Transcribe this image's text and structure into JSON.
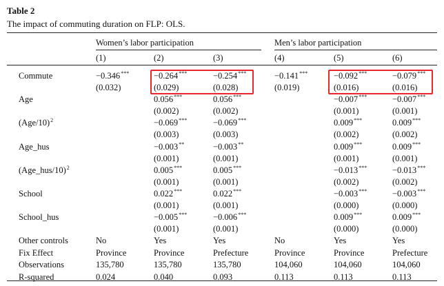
{
  "caption": {
    "label": "Table 2",
    "title": "The impact of commuting duration on FLP: OLS."
  },
  "groups": {
    "women": "Women’s labor participation",
    "men": "Men’s labor participation"
  },
  "col_nums": [
    "(1)",
    "(2)",
    "(3)",
    "(4)",
    "(5)",
    "(6)"
  ],
  "rows": [
    {
      "label": "Commute",
      "sup": "",
      "coef": [
        [
          "−0.346",
          "***"
        ],
        [
          "−0.264",
          "***"
        ],
        [
          "−0.254",
          "***"
        ],
        [
          "−0.141",
          "***"
        ],
        [
          "−0.092",
          "***"
        ],
        [
          "−0.079",
          "***"
        ]
      ],
      "se": [
        "(0.032)",
        "(0.029)",
        "(0.028)",
        "(0.019)",
        "(0.016)",
        "(0.016)"
      ]
    },
    {
      "label": "Age",
      "sup": "",
      "coef": [
        [
          "",
          ""
        ],
        [
          "0.056",
          "***"
        ],
        [
          "0.056",
          "***"
        ],
        [
          "",
          ""
        ],
        [
          "−0.007",
          "***"
        ],
        [
          "−0.007",
          "***"
        ]
      ],
      "se": [
        "",
        "(0.002)",
        "(0.002)",
        "",
        "(0.001)",
        "(0.001)"
      ]
    },
    {
      "label": "(Age/10)",
      "sup": "2",
      "coef": [
        [
          "",
          ""
        ],
        [
          "−0.069",
          "***"
        ],
        [
          "−0.069",
          "***"
        ],
        [
          "",
          ""
        ],
        [
          "0.009",
          "***"
        ],
        [
          "0.009",
          "***"
        ]
      ],
      "se": [
        "",
        "(0.003)",
        "(0.003)",
        "",
        "(0.002)",
        "(0.002)"
      ]
    },
    {
      "label": "Age_hus",
      "sup": "",
      "coef": [
        [
          "",
          ""
        ],
        [
          "−0.003",
          "**"
        ],
        [
          "−0.003",
          "**"
        ],
        [
          "",
          ""
        ],
        [
          "0.009",
          "***"
        ],
        [
          "0.009",
          "***"
        ]
      ],
      "se": [
        "",
        "(0.001)",
        "(0.001)",
        "",
        "(0.001)",
        "(0.001)"
      ]
    },
    {
      "label": "(Age_hus/10)",
      "sup": "2",
      "coef": [
        [
          "",
          ""
        ],
        [
          "0.005",
          "***"
        ],
        [
          "0.005",
          "***"
        ],
        [
          "",
          ""
        ],
        [
          "−0.013",
          "***"
        ],
        [
          "−0.013",
          "***"
        ]
      ],
      "se": [
        "",
        "(0.001)",
        "(0.001)",
        "",
        "(0.002)",
        "(0.002)"
      ]
    },
    {
      "label": "School",
      "sup": "",
      "coef": [
        [
          "",
          ""
        ],
        [
          "0.022",
          "***"
        ],
        [
          "0.022",
          "***"
        ],
        [
          "",
          ""
        ],
        [
          "−0.003",
          "***"
        ],
        [
          "−0.003",
          "***"
        ]
      ],
      "se": [
        "",
        "(0.001)",
        "(0.001)",
        "",
        "(0.000)",
        "(0.000)"
      ]
    },
    {
      "label": "School_hus",
      "sup": "",
      "coef": [
        [
          "",
          ""
        ],
        [
          "−0.005",
          "***"
        ],
        [
          "−0.006",
          "***"
        ],
        [
          "",
          ""
        ],
        [
          "0.009",
          "***"
        ],
        [
          "0.009",
          "***"
        ]
      ],
      "se": [
        "",
        "(0.001)",
        "(0.001)",
        "",
        "(0.000)",
        "(0.000)"
      ]
    }
  ],
  "footer_rows": [
    {
      "label": "Other controls",
      "values": [
        "No",
        "Yes",
        "Yes",
        "No",
        "Yes",
        "Yes"
      ]
    },
    {
      "label": "Fix Effect",
      "values": [
        "Province",
        "Province",
        "Prefecture",
        "Province",
        "Province",
        "Prefecture"
      ]
    },
    {
      "label": "Observations",
      "values": [
        "135,780",
        "135,780",
        "135,780",
        "104,060",
        "104,060",
        "104,060"
      ]
    },
    {
      "label": "R-squared",
      "values": [
        "0.024",
        "0.040",
        "0.093",
        "0.113",
        "0.113",
        "0.113"
      ]
    }
  ],
  "colors": {
    "highlight": "#e8262b",
    "text": "#111111",
    "rule": "#222222"
  }
}
